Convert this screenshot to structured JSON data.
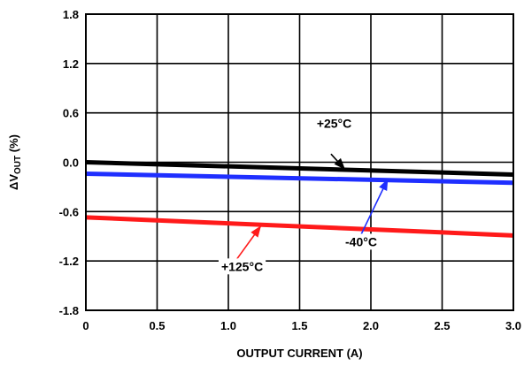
{
  "chart_data": {
    "type": "line",
    "title": "",
    "xlabel": "OUTPUT CURRENT (A)",
    "ylabel": {
      "prefix": "ΔV",
      "sub": "OUT",
      "suffix": " (%)"
    },
    "xlim": [
      0,
      3.0
    ],
    "ylim": [
      -1.8,
      1.8
    ],
    "grid": true,
    "x_ticks": [
      {
        "value": 0,
        "label": "0"
      },
      {
        "value": 0.5,
        "label": "0.5"
      },
      {
        "value": 1.0,
        "label": "1.0"
      },
      {
        "value": 1.5,
        "label": "1.5"
      },
      {
        "value": 2.0,
        "label": "2.0"
      },
      {
        "value": 2.5,
        "label": "2.5"
      },
      {
        "value": 3.0,
        "label": "3.0"
      }
    ],
    "y_ticks": [
      {
        "value": 1.8,
        "label": "1.8"
      },
      {
        "value": 1.2,
        "label": "1.2"
      },
      {
        "value": 0.6,
        "label": "0.6"
      },
      {
        "value": 0.0,
        "label": "0.0"
      },
      {
        "value": -0.6,
        "label": "-0.6"
      },
      {
        "value": -1.2,
        "label": "-1.2"
      },
      {
        "value": -1.8,
        "label": "-1.8"
      }
    ],
    "series": [
      {
        "name": "+25°C",
        "color": "#000000",
        "x": [
          0,
          3.0
        ],
        "y": [
          0.0,
          -0.15
        ]
      },
      {
        "name": "-40°C",
        "color": "#1f2fff",
        "x": [
          0,
          3.0
        ],
        "y": [
          -0.14,
          -0.25
        ]
      },
      {
        "name": "+125°C",
        "color": "#ff1a1a",
        "x": [
          0,
          3.0
        ],
        "y": [
          -0.67,
          -0.89
        ]
      }
    ],
    "annotations": [
      {
        "text": "+25°C",
        "series": 0,
        "arrow_color": "#000000",
        "text_x": 1.62,
        "text_y": 0.42,
        "tail_x": 1.72,
        "tail_y": 0.1,
        "head_x": 1.82,
        "head_y": -0.09
      },
      {
        "text": "-40°C",
        "series": 1,
        "arrow_color": "#1f2fff",
        "text_x": 1.82,
        "text_y": -1.02,
        "tail_x": 1.92,
        "tail_y": -0.92,
        "head_x": 2.12,
        "head_y": -0.2
      },
      {
        "text": "+125°C",
        "series": 2,
        "arrow_color": "#ff1a1a",
        "text_x": 0.95,
        "text_y": -1.32,
        "tail_x": 1.05,
        "tail_y": -1.2,
        "head_x": 1.23,
        "head_y": -0.77
      }
    ]
  }
}
